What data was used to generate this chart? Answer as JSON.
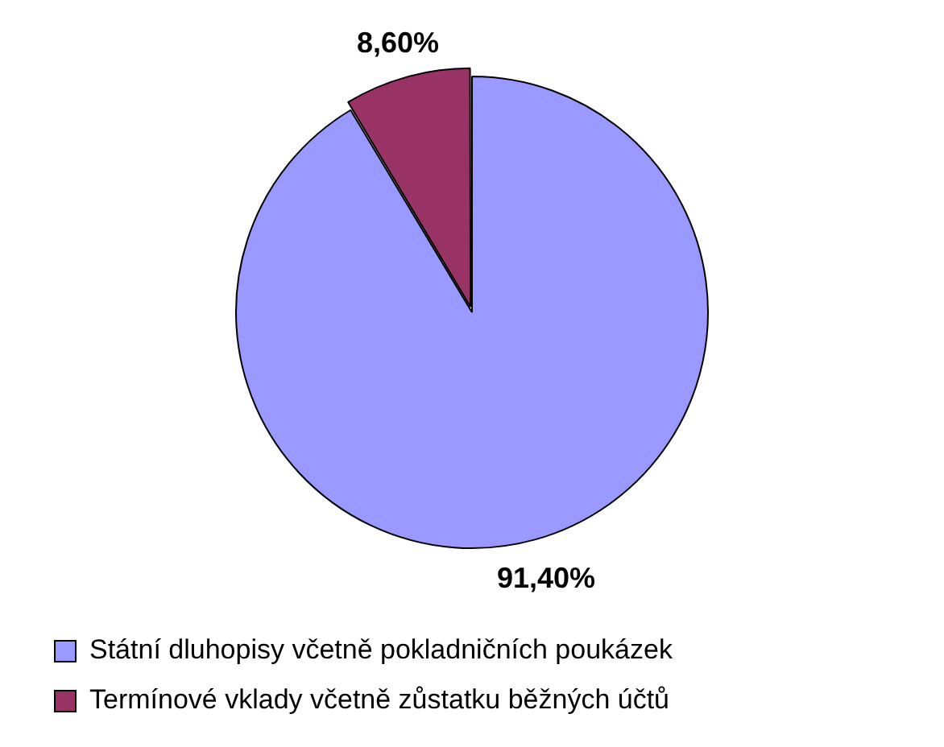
{
  "chart_data": {
    "type": "pie",
    "categories": [
      "Státní dluhopisy včetně pokladničních poukázek",
      "Termínové vklady včetně zůstatku běžných účtů"
    ],
    "values": [
      91.4,
      8.6
    ],
    "colors": [
      "#9999ff",
      "#993366"
    ],
    "value_labels": [
      "91,40%",
      "8,60%"
    ],
    "legend": "bottom"
  }
}
